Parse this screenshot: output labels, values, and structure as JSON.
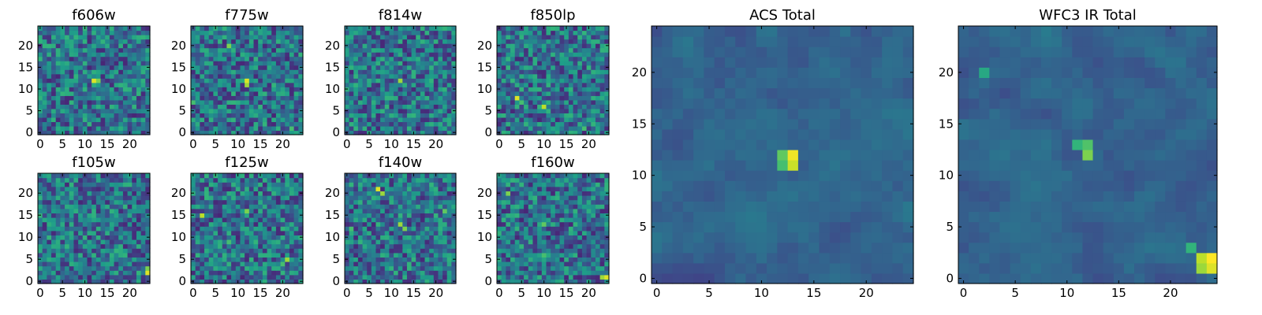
{
  "figure": {
    "type": "heatmap-grid",
    "colormap": [
      "#440154",
      "#482878",
      "#3e4989",
      "#31688e",
      "#26828e",
      "#1f9e89",
      "#35b779",
      "#6ece58",
      "#b5de2b",
      "#fde725"
    ]
  },
  "chart_data": [
    {
      "type": "heatmap",
      "id": "f606w",
      "title": "f606w",
      "grid_size": 25,
      "xlim": [
        0,
        24
      ],
      "ylim": [
        0,
        24
      ],
      "xticks": [
        0,
        5,
        10,
        15,
        20
      ],
      "yticks": [
        0,
        5,
        10,
        15,
        20
      ],
      "bright_spots": [
        {
          "x": 12,
          "y": 12,
          "v": 0.95
        },
        {
          "x": 13,
          "y": 12,
          "v": 0.8
        }
      ],
      "seed": 11
    },
    {
      "type": "heatmap",
      "id": "f775w",
      "title": "f775w",
      "grid_size": 25,
      "xlim": [
        0,
        24
      ],
      "ylim": [
        0,
        24
      ],
      "xticks": [
        0,
        5,
        10,
        15,
        20
      ],
      "yticks": [
        0,
        5,
        10,
        15,
        20
      ],
      "bright_spots": [
        {
          "x": 12,
          "y": 12,
          "v": 0.95
        },
        {
          "x": 12,
          "y": 11,
          "v": 0.85
        },
        {
          "x": 8,
          "y": 20,
          "v": 0.8
        },
        {
          "x": 22,
          "y": 1,
          "v": 0.7
        },
        {
          "x": 0,
          "y": 7,
          "v": 0.7
        }
      ],
      "seed": 23
    },
    {
      "type": "heatmap",
      "id": "f814w",
      "title": "f814w",
      "grid_size": 25,
      "xlim": [
        0,
        24
      ],
      "ylim": [
        0,
        24
      ],
      "xticks": [
        0,
        5,
        10,
        15,
        20
      ],
      "yticks": [
        0,
        5,
        10,
        15,
        20
      ],
      "bright_spots": [
        {
          "x": 12,
          "y": 12,
          "v": 0.85
        },
        {
          "x": 21,
          "y": 17,
          "v": 0.6
        },
        {
          "x": 5,
          "y": 0,
          "v": 0.6
        }
      ],
      "seed": 37
    },
    {
      "type": "heatmap",
      "id": "f850lp",
      "title": "f850lp",
      "grid_size": 25,
      "xlim": [
        0,
        24
      ],
      "ylim": [
        0,
        24
      ],
      "xticks": [
        0,
        5,
        10,
        15,
        20
      ],
      "yticks": [
        0,
        5,
        10,
        15,
        20
      ],
      "bright_spots": [
        {
          "x": 4,
          "y": 8,
          "v": 0.95
        },
        {
          "x": 5,
          "y": 7,
          "v": 0.7
        },
        {
          "x": 10,
          "y": 6,
          "v": 0.9
        },
        {
          "x": 19,
          "y": 1,
          "v": 0.7
        }
      ],
      "seed": 41
    },
    {
      "type": "heatmap",
      "id": "f105w",
      "title": "f105w",
      "grid_size": 25,
      "xlim": [
        0,
        24
      ],
      "ylim": [
        0,
        24
      ],
      "xticks": [
        0,
        5,
        10,
        15,
        20
      ],
      "yticks": [
        0,
        5,
        10,
        15,
        20
      ],
      "bright_spots": [
        {
          "x": 24,
          "y": 2,
          "v": 0.95
        },
        {
          "x": 24,
          "y": 3,
          "v": 0.8
        },
        {
          "x": 12,
          "y": 11,
          "v": 0.6
        },
        {
          "x": 18,
          "y": 20,
          "v": 0.55
        }
      ],
      "seed": 53
    },
    {
      "type": "heatmap",
      "id": "f125w",
      "title": "f125w",
      "grid_size": 25,
      "xlim": [
        0,
        24
      ],
      "ylim": [
        0,
        24
      ],
      "xticks": [
        0,
        5,
        10,
        15,
        20
      ],
      "yticks": [
        0,
        5,
        10,
        15,
        20
      ],
      "bright_spots": [
        {
          "x": 2,
          "y": 15,
          "v": 0.9
        },
        {
          "x": 12,
          "y": 16,
          "v": 0.8
        },
        {
          "x": 21,
          "y": 5,
          "v": 0.85
        },
        {
          "x": 20,
          "y": 4,
          "v": 0.7
        },
        {
          "x": 8,
          "y": 9,
          "v": 0.7
        },
        {
          "x": 3,
          "y": 20,
          "v": 0.65
        }
      ],
      "seed": 67
    },
    {
      "type": "heatmap",
      "id": "f140w",
      "title": "f140w",
      "grid_size": 25,
      "xlim": [
        0,
        24
      ],
      "ylim": [
        0,
        24
      ],
      "xticks": [
        0,
        5,
        10,
        15,
        20
      ],
      "yticks": [
        0,
        5,
        10,
        15,
        20
      ],
      "bright_spots": [
        {
          "x": 7,
          "y": 21,
          "v": 0.95
        },
        {
          "x": 8,
          "y": 20,
          "v": 0.85
        },
        {
          "x": 12,
          "y": 13,
          "v": 0.85
        },
        {
          "x": 13,
          "y": 12,
          "v": 0.8
        },
        {
          "x": 22,
          "y": 16,
          "v": 0.75
        },
        {
          "x": 1,
          "y": 12,
          "v": 0.7
        },
        {
          "x": 15,
          "y": 5,
          "v": 0.65
        }
      ],
      "seed": 79
    },
    {
      "type": "heatmap",
      "id": "f160w",
      "title": "f160w",
      "grid_size": 25,
      "xlim": [
        0,
        24
      ],
      "ylim": [
        0,
        24
      ],
      "xticks": [
        0,
        5,
        10,
        15,
        20
      ],
      "yticks": [
        0,
        5,
        10,
        15,
        20
      ],
      "bright_spots": [
        {
          "x": 24,
          "y": 1,
          "v": 0.95
        },
        {
          "x": 23,
          "y": 1,
          "v": 0.85
        },
        {
          "x": 10,
          "y": 13,
          "v": 0.75
        },
        {
          "x": 10,
          "y": 6,
          "v": 0.7
        },
        {
          "x": 2,
          "y": 20,
          "v": 0.8
        }
      ],
      "seed": 83
    },
    {
      "type": "heatmap",
      "id": "acs-total",
      "title": "ACS Total",
      "grid_size": 25,
      "xlim": [
        0,
        24
      ],
      "ylim": [
        0,
        24
      ],
      "xticks": [
        0,
        5,
        10,
        15,
        20
      ],
      "yticks": [
        0,
        5,
        10,
        15,
        20
      ],
      "bright_spots": [
        {
          "x": 13,
          "y": 12,
          "v": 0.98
        },
        {
          "x": 13,
          "y": 11,
          "v": 0.92
        },
        {
          "x": 12,
          "y": 12,
          "v": 0.75
        },
        {
          "x": 12,
          "y": 11,
          "v": 0.7
        }
      ],
      "seed": 97
    },
    {
      "type": "heatmap",
      "id": "wfc3-ir-total",
      "title": "WFC3 IR Total",
      "grid_size": 25,
      "xlim": [
        0,
        24
      ],
      "ylim": [
        0,
        24
      ],
      "xticks": [
        0,
        5,
        10,
        15,
        20
      ],
      "yticks": [
        0,
        5,
        10,
        15,
        20
      ],
      "bright_spots": [
        {
          "x": 24,
          "y": 2,
          "v": 1.0
        },
        {
          "x": 24,
          "y": 1,
          "v": 0.95
        },
        {
          "x": 23,
          "y": 2,
          "v": 0.9
        },
        {
          "x": 23,
          "y": 1,
          "v": 0.85
        },
        {
          "x": 22,
          "y": 3,
          "v": 0.65
        },
        {
          "x": 12,
          "y": 12,
          "v": 0.8
        },
        {
          "x": 12,
          "y": 13,
          "v": 0.72
        },
        {
          "x": 11,
          "y": 13,
          "v": 0.65
        },
        {
          "x": 2,
          "y": 20,
          "v": 0.6
        }
      ],
      "seed": 101
    }
  ]
}
